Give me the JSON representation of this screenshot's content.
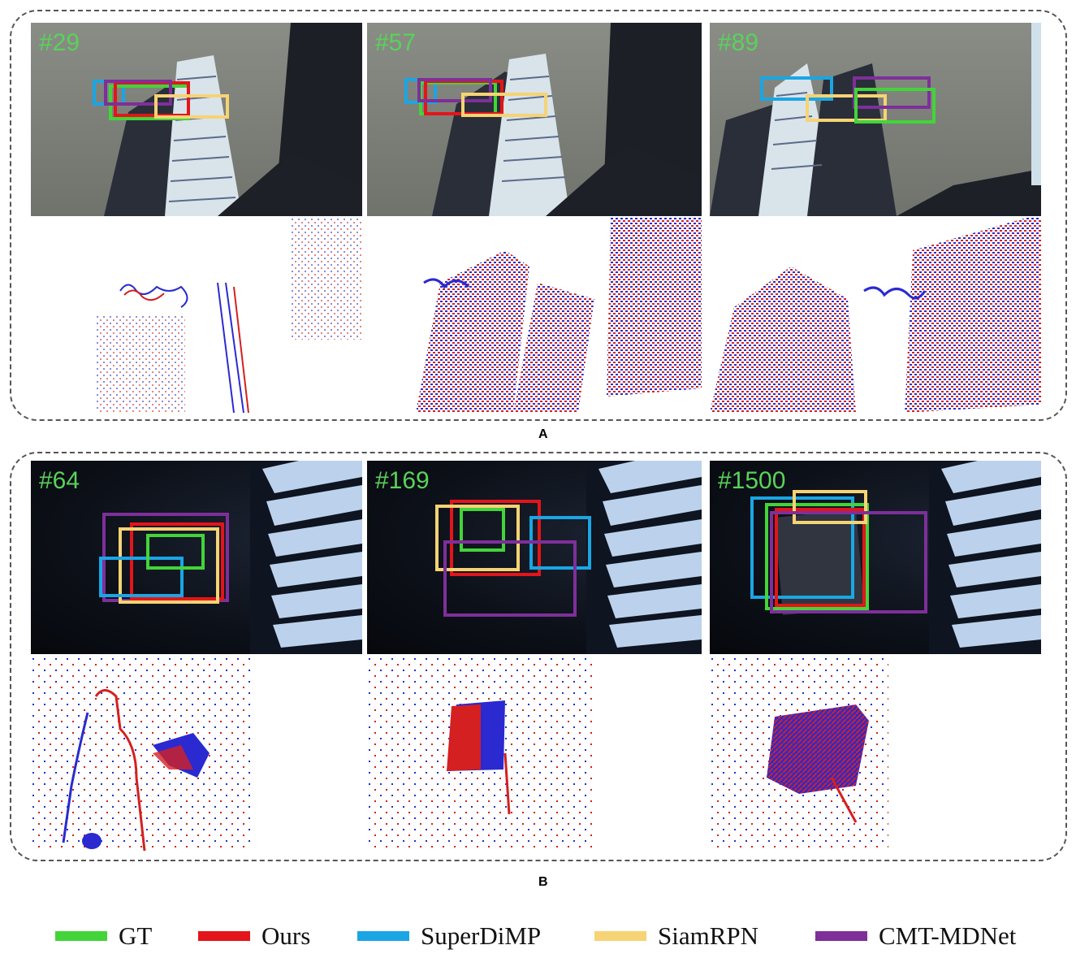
{
  "groups": [
    {
      "letter": "A",
      "frames": [
        {
          "label": "#29"
        },
        {
          "label": "#57"
        },
        {
          "label": "#89"
        }
      ]
    },
    {
      "letter": "B",
      "frames": [
        {
          "label": "#64"
        },
        {
          "label": "#169"
        },
        {
          "label": "#1500"
        }
      ]
    }
  ],
  "legend": [
    {
      "label": "GT",
      "color": "#43d43a"
    },
    {
      "label": "Ours",
      "color": "#e3151a"
    },
    {
      "label": "SuperDiMP",
      "color": "#1aa6e4"
    },
    {
      "label": "SiamRPN",
      "color": "#f6d374"
    },
    {
      "label": "CMT-MDNet",
      "color": "#7e2f9a"
    }
  ]
}
